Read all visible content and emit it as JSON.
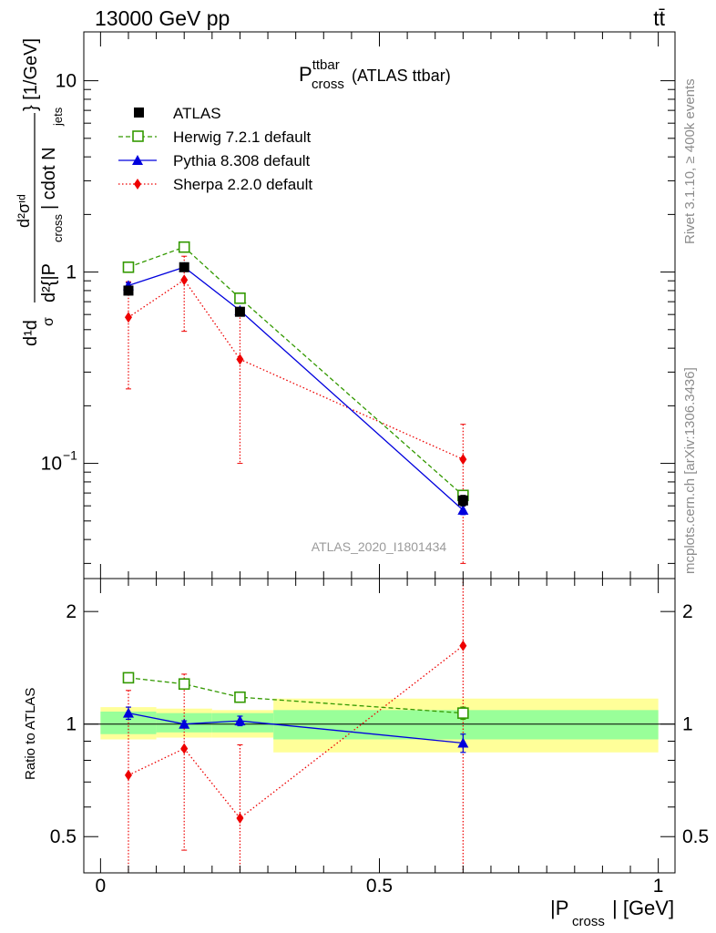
{
  "header": {
    "beam_label": "13000 GeV pp",
    "process_label": "tt̄"
  },
  "side_labels": {
    "rivet": "Rivet 3.1.10, ≥ 400k events",
    "mcplots": "mcplots.cern.ch [arXiv:1306.3436]"
  },
  "analysis_label": "ATLAS_2020_I1801434",
  "colors": {
    "atlas": "#000000",
    "herwig": "#339900",
    "pythia": "#0000dd",
    "sherpa": "#ee0000",
    "band_inner": "#99ff99",
    "band_outer": "#ffff99"
  },
  "chart_data": [
    {
      "type": "line",
      "panel": "main",
      "title": {
        "symbol": "P",
        "superscript": "ttbar",
        "subscript": "cross",
        "suffix": "(ATLAS ttbar)"
      },
      "ylabel_parts": {
        "bracket_close": "} [1/GeV]",
        "numerator": "d²σᶦᵈ",
        "denominator": "d²{|P",
        "cross_sub": "cross",
        "denominator_rest": "| cdot N",
        "jets_sub": "jets",
        "prefix": "d¹d",
        "sigma_frac": "σ"
      },
      "xlim": [
        -0.03,
        1.03
      ],
      "ylim": [
        0.025,
        18
      ],
      "yscale": "log",
      "yticks": [
        {
          "value": 10,
          "label": "10"
        },
        {
          "value": 1,
          "label": "1"
        },
        {
          "value": 0.1,
          "base": "10",
          "exp": "−1"
        }
      ],
      "series": [
        {
          "name": "ATLAS",
          "key": "atlas",
          "marker": "square-filled",
          "line": "none",
          "x": [
            0.05,
            0.15,
            0.25,
            0.65
          ],
          "y": [
            0.8,
            1.06,
            0.62,
            0.064
          ],
          "yerr_low": [
            0.04,
            0.04,
            0.03,
            0.004
          ],
          "yerr_high": [
            0.04,
            0.04,
            0.03,
            0.004
          ]
        },
        {
          "name": "Herwig 7.2.1 default",
          "key": "herwig",
          "marker": "square-open",
          "line": "dashed",
          "x": [
            0.05,
            0.15,
            0.25,
            0.65
          ],
          "y": [
            1.06,
            1.35,
            0.73,
            0.068
          ],
          "yerr_low": [
            0.02,
            0.02,
            0.02,
            0.002
          ],
          "yerr_high": [
            0.02,
            0.02,
            0.02,
            0.002
          ]
        },
        {
          "name": "Pythia 8.308 default",
          "key": "pythia",
          "marker": "triangle-up",
          "line": "solid",
          "x": [
            0.05,
            0.15,
            0.25,
            0.65
          ],
          "y": [
            0.85,
            1.06,
            0.63,
            0.057
          ],
          "yerr_low": [
            0.03,
            0.02,
            0.02,
            0.003
          ],
          "yerr_high": [
            0.03,
            0.02,
            0.02,
            0.003
          ]
        },
        {
          "name": "Sherpa 2.2.0 default",
          "key": "sherpa",
          "marker": "diamond",
          "line": "dotted",
          "x": [
            0.05,
            0.15,
            0.25,
            0.65
          ],
          "y": [
            0.58,
            0.91,
            0.35,
            0.105
          ],
          "yerr_low": [
            0.335,
            0.42,
            0.25,
            0.075
          ],
          "yerr_high": [
            0.31,
            0.3,
            0.3,
            0.055
          ]
        }
      ]
    },
    {
      "type": "line",
      "panel": "ratio",
      "ylabel": "Ratio to ATLAS",
      "xlabel": {
        "prefix": "|P",
        "subscript": "cross",
        "suffix": "| [GeV]"
      },
      "xlim": [
        -0.03,
        1.03
      ],
      "ylim": [
        0.4,
        2.45
      ],
      "yscale": "log",
      "xticks": [
        {
          "value": 0,
          "label": "0"
        },
        {
          "value": 0.5,
          "label": "0.5"
        },
        {
          "value": 1,
          "label": "1"
        }
      ],
      "yticks": [
        {
          "value": 2,
          "label": "2"
        },
        {
          "value": 1,
          "label": "1"
        },
        {
          "value": 0.5,
          "label": "0.5"
        }
      ],
      "bands": [
        {
          "x0": 0.0,
          "x1": 0.1,
          "inner": [
            0.94,
            1.08
          ],
          "outer": [
            0.91,
            1.11
          ]
        },
        {
          "x0": 0.1,
          "x1": 0.2,
          "inner": [
            0.95,
            1.07
          ],
          "outer": [
            0.92,
            1.1
          ]
        },
        {
          "x0": 0.2,
          "x1": 0.31,
          "inner": [
            0.95,
            1.07
          ],
          "outer": [
            0.92,
            1.09
          ]
        },
        {
          "x0": 0.31,
          "x1": 1.0,
          "inner": [
            0.91,
            1.09
          ],
          "outer": [
            0.84,
            1.17
          ]
        }
      ],
      "series": [
        {
          "name": "Herwig 7.2.1 default",
          "key": "herwig",
          "marker": "square-open",
          "line": "dashed",
          "x": [
            0.05,
            0.15,
            0.25,
            0.65
          ],
          "y": [
            1.33,
            1.28,
            1.18,
            1.07
          ],
          "yerr_low": [
            0.03,
            0.02,
            0.03,
            0.04
          ],
          "yerr_high": [
            0.03,
            0.02,
            0.03,
            0.04
          ]
        },
        {
          "name": "Pythia 8.308 default",
          "key": "pythia",
          "marker": "triangle-up",
          "line": "solid",
          "x": [
            0.05,
            0.15,
            0.25,
            0.65
          ],
          "y": [
            1.07,
            1.0,
            1.02,
            0.89
          ],
          "yerr_low": [
            0.04,
            0.02,
            0.03,
            0.05
          ],
          "yerr_high": [
            0.04,
            0.02,
            0.03,
            0.05
          ]
        },
        {
          "name": "Sherpa 2.2.0 default",
          "key": "sherpa",
          "marker": "diamond",
          "line": "dotted",
          "x": [
            0.05,
            0.15,
            0.25,
            0.65
          ],
          "y": [
            0.73,
            0.86,
            0.56,
            1.62
          ],
          "yerr_low": [
            0.4,
            0.4,
            0.2,
            1.3
          ],
          "yerr_high": [
            0.5,
            0.5,
            0.32,
            1.3
          ]
        }
      ]
    }
  ]
}
